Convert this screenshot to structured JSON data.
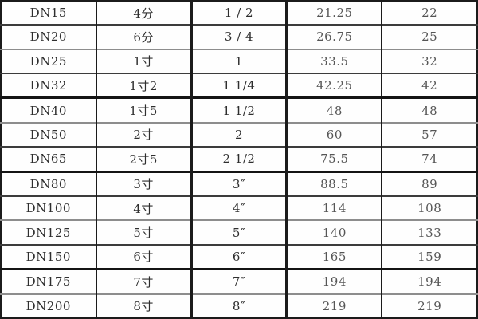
{
  "colors": {
    "background": "#ffffff",
    "border_dark": "#1b1b1b",
    "border_light": "#8d8d8d",
    "text_dark": "#2e2e2e",
    "text_light": "#565656"
  },
  "chart_data": {
    "type": "table",
    "title": "",
    "columns_visible_headers": [],
    "rows": [
      [
        "DN15",
        "4分",
        "1 / 2",
        "21.25",
        "22"
      ],
      [
        "DN20",
        "6分",
        "3 / 4",
        "26.75",
        "25"
      ],
      [
        "DN25",
        "1寸",
        "1",
        "33.5",
        "32"
      ],
      [
        "DN32",
        "1寸2",
        "1 1/4",
        "42.25",
        "42"
      ],
      [
        "DN40",
        "1寸5",
        "1 1/2",
        "48",
        "48"
      ],
      [
        "DN50",
        "2寸",
        "2",
        "60",
        "57"
      ],
      [
        "DN65",
        "2寸5",
        "2 1/2",
        "75.5",
        "74"
      ],
      [
        "DN80",
        "3寸",
        "3″",
        "88.5",
        "89"
      ],
      [
        "DN100",
        "4寸",
        "4″",
        "114",
        "108"
      ],
      [
        "DN125",
        "5寸",
        "5″",
        "140",
        "133"
      ],
      [
        "DN150",
        "6寸",
        "6″",
        "165",
        "159"
      ],
      [
        "DN175",
        "7寸",
        "7″",
        "194",
        "194"
      ],
      [
        "DN200",
        "8寸",
        "8″",
        "219",
        "219"
      ]
    ]
  }
}
